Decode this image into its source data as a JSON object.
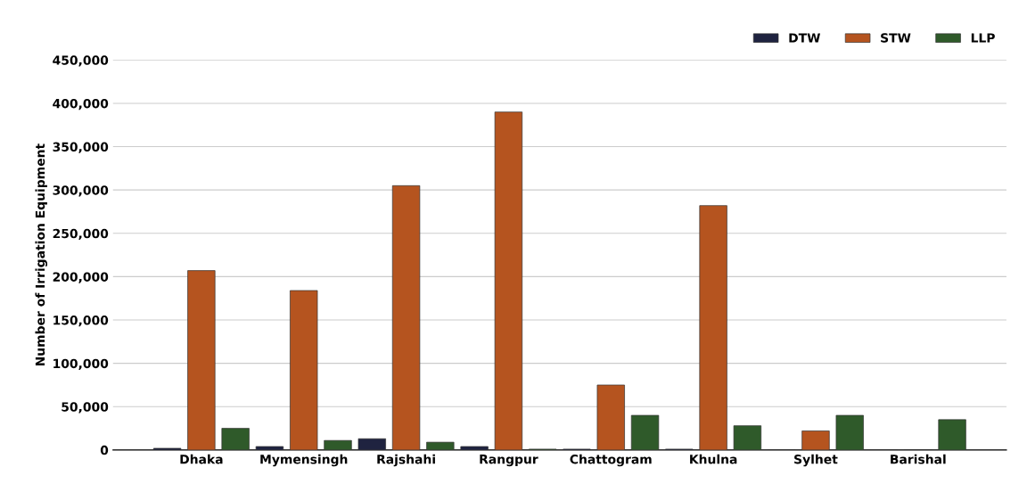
{
  "chart_data": {
    "type": "bar",
    "ylabel": "Number of Irrigation Equipment",
    "categories": [
      "Dhaka",
      "Mymensingh",
      "Rajshahi",
      "Rangpur",
      "Chattogram",
      "Khulna",
      "Sylhet",
      "Barishal"
    ],
    "series": [
      {
        "name": "DTW",
        "color": "#1f2340",
        "values": [
          2000,
          4000,
          13000,
          4000,
          1000,
          1000,
          null,
          null
        ]
      },
      {
        "name": "STW",
        "color": "#b5541f",
        "values": [
          207000,
          184000,
          305000,
          390000,
          75000,
          282000,
          22000,
          null
        ]
      },
      {
        "name": "LLP",
        "color": "#2f5a2a",
        "values": [
          25000,
          11000,
          9000,
          1000,
          40000,
          28000,
          40000,
          35000
        ]
      }
    ],
    "ylim": [
      0,
      450000
    ],
    "yticks": [
      {
        "value": 0,
        "label": "0"
      },
      {
        "value": 50000,
        "label": "50,000"
      },
      {
        "value": 100000,
        "label": "100,000"
      },
      {
        "value": 150000,
        "label": "150,000"
      },
      {
        "value": 200000,
        "label": "200,000"
      },
      {
        "value": 250000,
        "label": "250,000"
      },
      {
        "value": 300000,
        "label": "300,000"
      },
      {
        "value": 350000,
        "label": "350,000"
      },
      {
        "value": 400000,
        "label": "400,000"
      },
      {
        "value": 450000,
        "label": "450,000"
      }
    ],
    "grid": "y",
    "legend": "top right"
  }
}
